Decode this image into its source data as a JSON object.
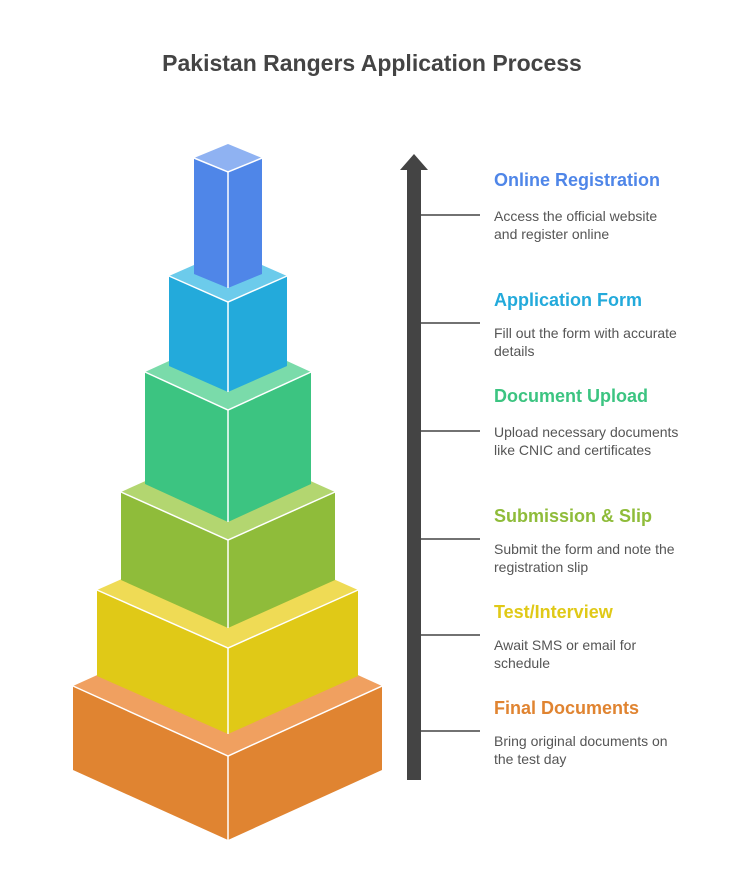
{
  "title": "Pakistan Rangers Application Process",
  "steps": [
    {
      "title": "Online Registration",
      "description": "Access the official website and register online",
      "color": "#4F86E8"
    },
    {
      "title": "Application Form",
      "description": "Fill out the form with accurate details",
      "color": "#23AADB"
    },
    {
      "title": "Document Upload",
      "description": "Upload necessary documents like CNIC and certificates",
      "color": "#3CC481"
    },
    {
      "title": "Submission & Slip",
      "description": "Submit the form and note the registration slip",
      "color": "#8FBC3A"
    },
    {
      "title": "Test/Interview",
      "description": "Await SMS or email for schedule",
      "color": "#E0C917"
    },
    {
      "title": "Final Documents",
      "description": "Bring original documents on the test day",
      "color": "#E08431"
    }
  ]
}
